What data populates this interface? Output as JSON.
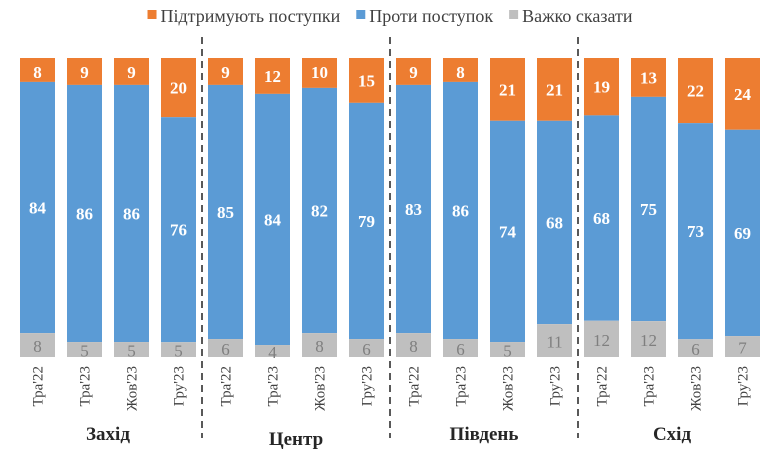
{
  "chart_data": {
    "type": "bar",
    "stacked": true,
    "normalized": true,
    "legend_position": "top",
    "grid": false,
    "groups": [
      "Захід",
      "Центр",
      "Південь",
      "Схід"
    ],
    "categories": [
      "Тра'22",
      "Тра'23",
      "Жов'23",
      "Гру'23"
    ],
    "series": [
      {
        "name": "Підтримують поступки",
        "color": "#ED7D31",
        "values": [
          [
            8,
            9,
            9,
            20
          ],
          [
            9,
            12,
            10,
            15
          ],
          [
            9,
            8,
            21,
            21
          ],
          [
            19,
            13,
            22,
            24
          ]
        ]
      },
      {
        "name": "Проти поступок",
        "color": "#5B9BD5",
        "values": [
          [
            84,
            86,
            86,
            76
          ],
          [
            85,
            84,
            82,
            79
          ],
          [
            83,
            86,
            74,
            68
          ],
          [
            68,
            75,
            73,
            69
          ]
        ]
      },
      {
        "name": "Важко сказати",
        "color": "#BFBFBF",
        "values": [
          [
            8,
            5,
            5,
            5
          ],
          [
            6,
            4,
            8,
            6
          ],
          [
            8,
            6,
            5,
            11
          ],
          [
            12,
            12,
            6,
            7
          ]
        ]
      }
    ]
  }
}
